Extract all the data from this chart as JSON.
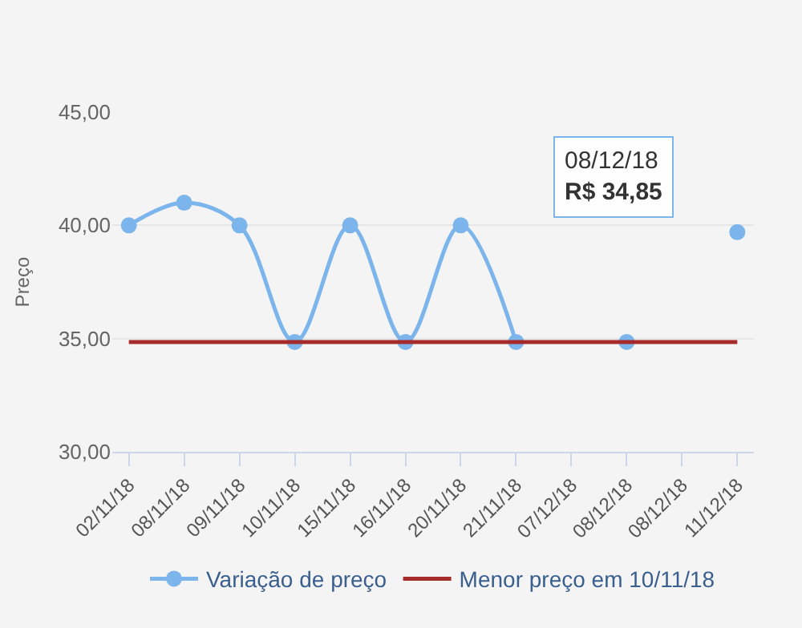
{
  "chart_data": {
    "type": "line",
    "ylabel": "Preço",
    "categories": [
      "02/11/18",
      "08/11/18",
      "09/11/18",
      "10/11/18",
      "15/11/18",
      "16/11/18",
      "20/11/18",
      "21/11/18",
      "07/12/18",
      "08/12/18",
      "08/12/18",
      "11/12/18"
    ],
    "series": [
      {
        "name": "Variação de preço",
        "color": "#7cb5ec",
        "marker": "circle",
        "values": [
          40,
          41,
          40,
          34.85,
          40,
          34.85,
          40,
          34.85,
          null,
          34.85,
          null,
          39.7
        ]
      },
      {
        "name": "Menor preço em 10/11/18",
        "color": "#a52a2a",
        "marker": "none",
        "values": [
          34.85,
          34.85,
          34.85,
          34.85,
          34.85,
          34.85,
          34.85,
          34.85,
          34.85,
          34.85,
          34.85,
          34.85
        ]
      }
    ],
    "ylim": [
      30,
      45
    ],
    "yticks": [
      {
        "value": 30,
        "label": "30,00"
      },
      {
        "value": 35,
        "label": "35,00"
      },
      {
        "value": 40,
        "label": "40,00"
      },
      {
        "value": 45,
        "label": "45,00"
      }
    ],
    "grid": "y",
    "legend": "bottom",
    "annotations": [
      "08/12/18\nR$ 34,85"
    ]
  }
}
